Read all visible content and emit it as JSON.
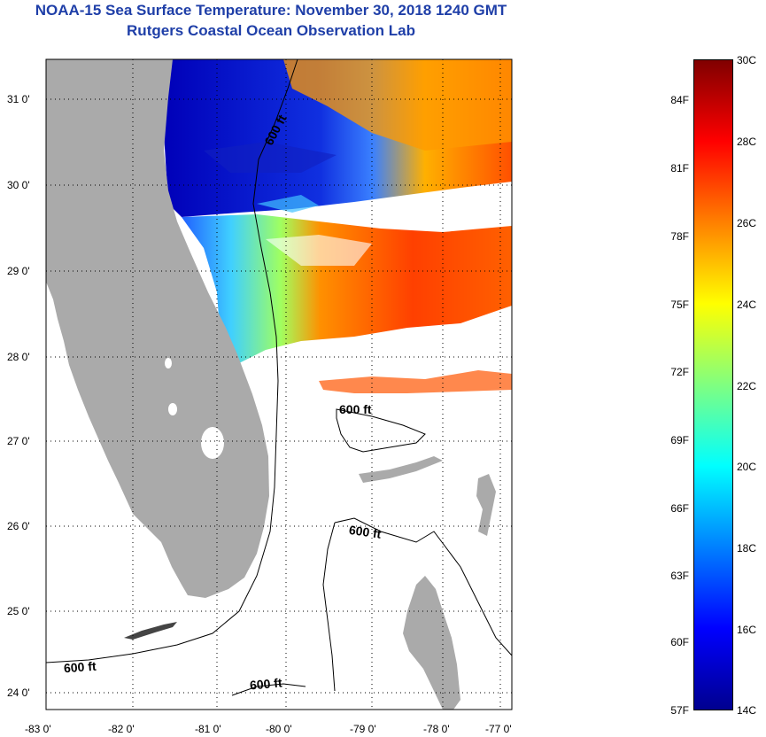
{
  "title": {
    "line1": "NOAA-15 Sea Surface Temperature:  November 30, 2018 1240 GMT",
    "line2": "Rutgers Coastal Ocean Observation Lab"
  },
  "map": {
    "lon_labels": [
      "-83 0'",
      "-82 0'",
      "-81 0'",
      "-80 0'",
      "-79 0'",
      "-78 0'",
      "-77 0'"
    ],
    "lat_labels": [
      "31 0'",
      "30 0'",
      "29 0'",
      "28 0'",
      "27 0'",
      "26 0'",
      "25 0'",
      "24 0'"
    ],
    "contour_labels": [
      "600 ft",
      "600 ft",
      "600 ft",
      "600 ft",
      "600 ft"
    ],
    "land_color": "#aaaaaa",
    "cloud_color": "#ffffff"
  },
  "colorbar": {
    "fahrenheit_labels": [
      "84F",
      "81F",
      "78F",
      "75F",
      "72F",
      "69F",
      "66F",
      "63F",
      "60F",
      "57F"
    ],
    "celsius_labels": [
      "30C",
      "28C",
      "26C",
      "24C",
      "22C",
      "20C",
      "18C",
      "16C",
      "14C"
    ],
    "range_c": [
      14,
      30
    ],
    "range_f": [
      57,
      86
    ],
    "colors": [
      "#00008f",
      "#0000ff",
      "#0080ff",
      "#00ffff",
      "#80ff80",
      "#ffff00",
      "#ff8000",
      "#ff0000",
      "#800000"
    ]
  }
}
